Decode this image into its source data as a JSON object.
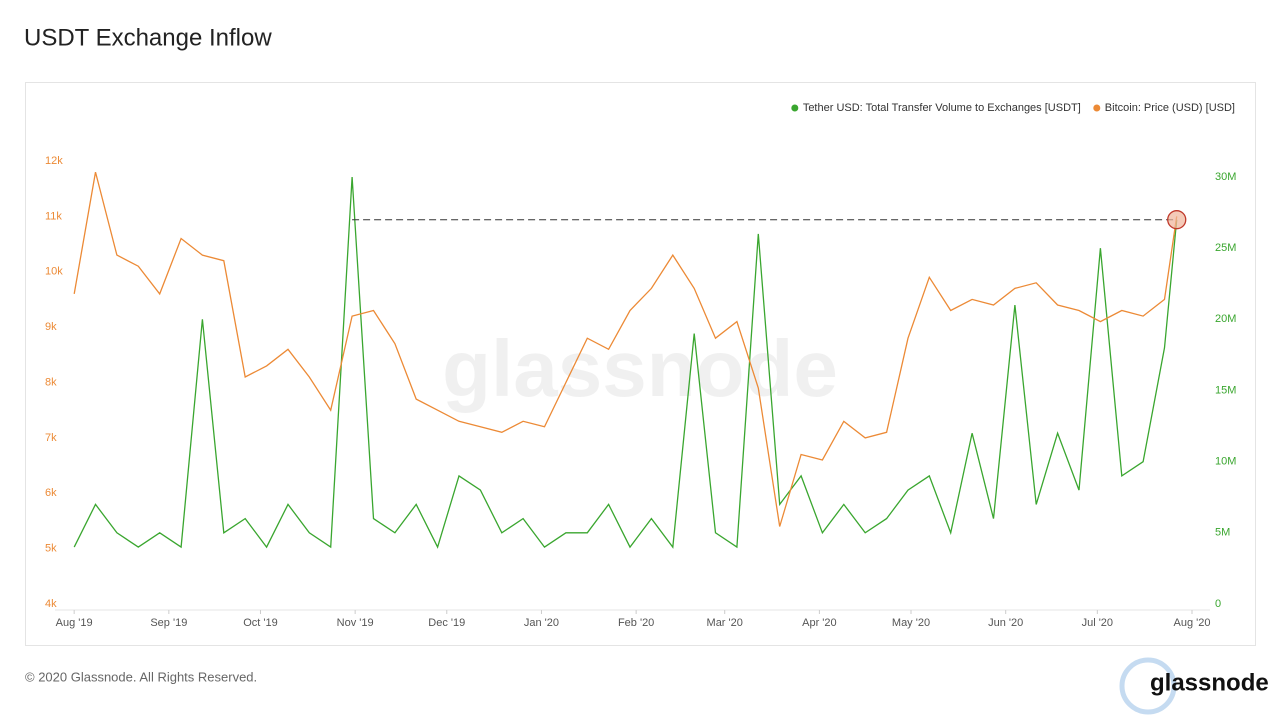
{
  "chart_data": {
    "type": "line",
    "title": "USDT Exchange Inflow",
    "watermark": "glassnode",
    "x": [
      0,
      7,
      14,
      21,
      28,
      35,
      42,
      49,
      56,
      63,
      70,
      77,
      84,
      91,
      98,
      105,
      112,
      119,
      126,
      133,
      140,
      147,
      154,
      161,
      168,
      175,
      182,
      189,
      196,
      203,
      210,
      217,
      224,
      231,
      238,
      245,
      252,
      259,
      266,
      273,
      280,
      287,
      294,
      301,
      308,
      315,
      322,
      329,
      336,
      343,
      350,
      357,
      361
    ],
    "xlim": [
      -3,
      366
    ],
    "xticks": [
      {
        "value": 0,
        "label": "Aug '19"
      },
      {
        "value": 31,
        "label": "Sep '19"
      },
      {
        "value": 61,
        "label": "Oct '19"
      },
      {
        "value": 92,
        "label": "Nov '19"
      },
      {
        "value": 122,
        "label": "Dec '19"
      },
      {
        "value": 153,
        "label": "Jan '20"
      },
      {
        "value": 184,
        "label": "Feb '20"
      },
      {
        "value": 213,
        "label": "Mar '20"
      },
      {
        "value": 244,
        "label": "Apr '20"
      },
      {
        "value": 274,
        "label": "May '20"
      },
      {
        "value": 305,
        "label": "Jun '20"
      },
      {
        "value": 335,
        "label": "Jul '20"
      },
      {
        "value": 366,
        "label": "Aug '20"
      }
    ],
    "ylim": [
      4000,
      12000
    ],
    "yticks": [
      {
        "value": 4000,
        "label": "4k"
      },
      {
        "value": 5000,
        "label": "5k"
      },
      {
        "value": 6000,
        "label": "6k"
      },
      {
        "value": 7000,
        "label": "7k"
      },
      {
        "value": 8000,
        "label": "8k"
      },
      {
        "value": 9000,
        "label": "9k"
      },
      {
        "value": 10000,
        "label": "10k"
      },
      {
        "value": 11000,
        "label": "11k"
      },
      {
        "value": 12000,
        "label": "12k"
      }
    ],
    "y2lim": [
      0,
      30000000
    ],
    "y2ticks": [
      0,
      {
        "value": 5000000,
        "label": "5M"
      },
      {
        "value": 10000000,
        "label": "10M"
      },
      {
        "value": 15000000,
        "label": "15M"
      },
      {
        "value": 20000000,
        "label": "20M"
      },
      {
        "value": 25000000,
        "label": "25M"
      },
      {
        "value": 30000000,
        "label": "30M"
      }
    ],
    "grid": false,
    "legend": "top-right",
    "series": [
      {
        "name": "Tether USD: Total Transfer Volume to Exchanges [USDT]",
        "color": "#3aa62f",
        "axis": "y2",
        "values": [
          4000000,
          7000000,
          5000000,
          4000000,
          5000000,
          4000000,
          20000000,
          5000000,
          6000000,
          4000000,
          7000000,
          5000000,
          4000000,
          30000000,
          6000000,
          5000000,
          7000000,
          4000000,
          9000000,
          8000000,
          5000000,
          6000000,
          4000000,
          5000000,
          5000000,
          7000000,
          4000000,
          6000000,
          4000000,
          19000000,
          5000000,
          4000000,
          26000000,
          7000000,
          9000000,
          5000000,
          7000000,
          5000000,
          6000000,
          8000000,
          9000000,
          5000000,
          12000000,
          6000000,
          21000000,
          7000000,
          12000000,
          8000000,
          25000000,
          9000000,
          10000000,
          18000000,
          27000000
        ]
      },
      {
        "name": "Bitcoin: Price (USD) [USD]",
        "color": "#ec8a36",
        "values": [
          9600,
          11800,
          10300,
          10100,
          9600,
          10600,
          10300,
          10200,
          8100,
          8300,
          8600,
          8100,
          7500,
          9200,
          9300,
          8700,
          7700,
          7500,
          7300,
          7200,
          7100,
          7300,
          7200,
          8000,
          8800,
          8600,
          9300,
          9700,
          10300,
          9700,
          8800,
          9100,
          7900,
          5400,
          6700,
          6600,
          7300,
          7000,
          7100,
          8800,
          9900,
          9300,
          9500,
          9400,
          9700,
          9800,
          9400,
          9300,
          9100,
          9300,
          9200,
          9500,
          11000
        ]
      }
    ]
  },
  "footer": {
    "copyright": "© 2020 Glassnode. All Rights Reserved.",
    "logo": "glassnode"
  }
}
